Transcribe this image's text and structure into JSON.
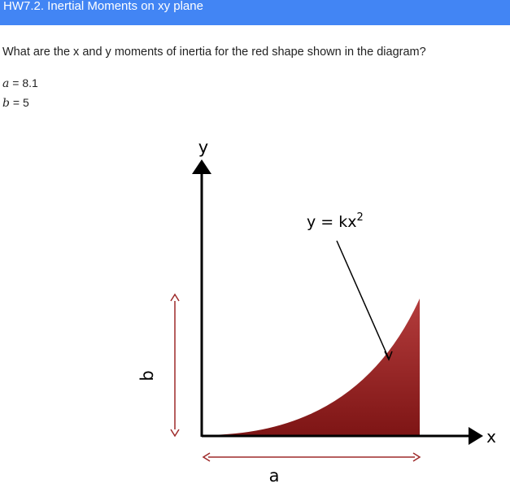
{
  "header": {
    "title": "HW7.2. Inertial Moments on xy plane",
    "background_color": "#4285f4"
  },
  "question": {
    "text": "What are the x and y moments of inertia for the red shape shown in the diagram?"
  },
  "givens": [
    {
      "variable": "a",
      "equals": "=",
      "value": "8.1"
    },
    {
      "variable": "b",
      "equals": "=",
      "value": "5"
    }
  ],
  "diagram": {
    "y_axis_label": "y",
    "x_axis_label": "x",
    "curve_label": "y = kx",
    "curve_label_exponent": "2",
    "width_label": "a",
    "height_label": "b",
    "shape_fill_light": "#b43c3c",
    "shape_fill_dark": "#7e1515",
    "dimension_arrow_color": "#9e2a2a"
  }
}
